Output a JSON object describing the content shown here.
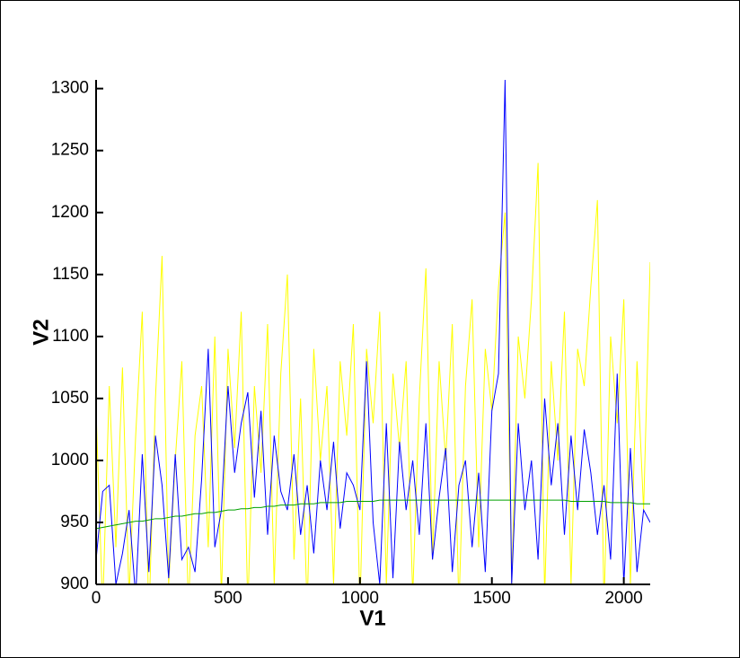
{
  "chart_data": {
    "type": "line",
    "x_label": "V1",
    "y_label": "V2",
    "x": [
      0,
      25,
      50,
      75,
      100,
      125,
      150,
      175,
      200,
      225,
      250,
      275,
      300,
      325,
      350,
      375,
      400,
      425,
      450,
      475,
      500,
      525,
      550,
      575,
      600,
      625,
      650,
      675,
      700,
      725,
      750,
      775,
      800,
      825,
      850,
      875,
      900,
      925,
      950,
      975,
      1000,
      1025,
      1050,
      1075,
      1100,
      1125,
      1150,
      1175,
      1200,
      1225,
      1250,
      1275,
      1300,
      1325,
      1350,
      1375,
      1400,
      1425,
      1450,
      1475,
      1500,
      1525,
      1550,
      1575,
      1600,
      1625,
      1650,
      1675,
      1700,
      1725,
      1750,
      1775,
      1800,
      1825,
      1850,
      1875,
      1900,
      1925,
      1950,
      1975,
      2000,
      2025,
      2050,
      2075,
      2100
    ],
    "series": [
      {
        "color": "#ffff00",
        "values": [
          1040,
          880,
          1060,
          930,
          1075,
          890,
          1020,
          1120,
          870,
          1050,
          1165,
          900,
          1000,
          1080,
          880,
          1020,
          1060,
          930,
          1100,
          890,
          1090,
          1010,
          1120,
          880,
          1060,
          990,
          1110,
          900,
          1070,
          1150,
          920,
          1050,
          880,
          1090,
          1000,
          1060,
          900,
          1080,
          1020,
          1110,
          880,
          1090,
          1030,
          1120,
          900,
          1070,
          1010,
          1080,
          890,
          1050,
          1155,
          920,
          1080,
          1000,
          1110,
          880,
          1060,
          1130,
          930,
          1090,
          1040,
          1140,
          1200,
          900,
          1100,
          1050,
          1130,
          1240,
          890,
          1080,
          1000,
          1120,
          900,
          1090,
          1060,
          1140,
          1210,
          880,
          1100,
          1030,
          1130,
          900,
          1080,
          960,
          1160
        ]
      },
      {
        "color": "#0000ff",
        "values": [
          920,
          975,
          980,
          900,
          925,
          960,
          890,
          1005,
          910,
          1020,
          980,
          905,
          1005,
          920,
          930,
          910,
          985,
          1090,
          930,
          960,
          1060,
          990,
          1030,
          1055,
          970,
          1040,
          940,
          1020,
          975,
          960,
          1005,
          940,
          980,
          925,
          1000,
          960,
          1015,
          945,
          990,
          980,
          960,
          1080,
          950,
          900,
          1030,
          905,
          1015,
          960,
          1000,
          940,
          1030,
          920,
          970,
          1010,
          910,
          980,
          1000,
          930,
          990,
          910,
          1040,
          1070,
          1307,
          900,
          1030,
          960,
          1000,
          920,
          1050,
          980,
          1030,
          940,
          1020,
          960,
          1025,
          990,
          940,
          980,
          920,
          1070,
          900,
          1010,
          910,
          960,
          950
        ]
      },
      {
        "color": "#00a000",
        "values": [
          945,
          946,
          947,
          948,
          949,
          950,
          951,
          951,
          952,
          953,
          953,
          954,
          955,
          955,
          956,
          957,
          957,
          958,
          958,
          959,
          960,
          960,
          961,
          961,
          962,
          962,
          963,
          963,
          964,
          964,
          964,
          965,
          965,
          965,
          966,
          966,
          966,
          966,
          967,
          967,
          967,
          967,
          967,
          968,
          968,
          968,
          968,
          968,
          968,
          968,
          968,
          968,
          968,
          968,
          968,
          968,
          968,
          968,
          968,
          968,
          968,
          968,
          968,
          968,
          968,
          968,
          968,
          968,
          968,
          968,
          968,
          968,
          967,
          967,
          967,
          967,
          967,
          967,
          966,
          966,
          966,
          966,
          965,
          965,
          965
        ]
      }
    ],
    "xlim": [
      0,
      2100
    ],
    "ylim": [
      900,
      1307
    ],
    "xticks": [
      0,
      500,
      1000,
      1500,
      2000
    ],
    "yticks": [
      900,
      950,
      1000,
      1050,
      1100,
      1150,
      1200,
      1250,
      1300
    ]
  }
}
